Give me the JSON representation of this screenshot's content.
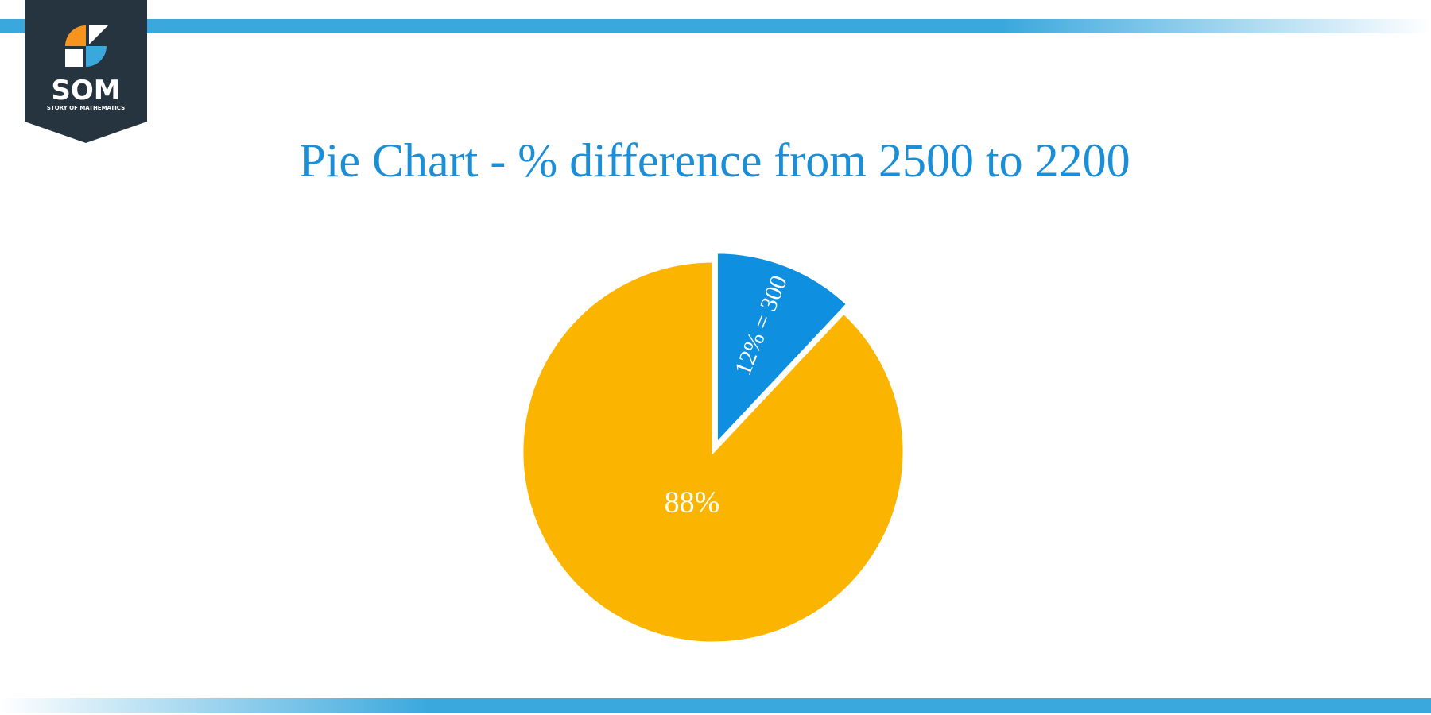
{
  "logo": {
    "text": "SOM",
    "subtitle": "STORY OF MATHEMATICS"
  },
  "chart_data": {
    "type": "pie",
    "title": "Pie Chart - % difference from 2500 to 2200",
    "values": [
      12,
      88
    ],
    "value_labels": [
      "12% = 300",
      "88%"
    ],
    "colors": [
      "#0e8fe0",
      "#fbb500"
    ]
  }
}
